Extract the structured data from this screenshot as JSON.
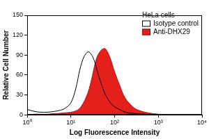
{
  "chart_data": {
    "type": "line",
    "title": "HeLa cells",
    "x_label": "Log Fluorescence Intensity",
    "y_label": "Relative Cell Number",
    "x": [
      1,
      1.5,
      2,
      3,
      4,
      5,
      7,
      10,
      13,
      16,
      20,
      25,
      30,
      35,
      40,
      50,
      60,
      70,
      80,
      100,
      130,
      160,
      200,
      300,
      500,
      1000,
      2000,
      10000
    ],
    "series": [
      {
        "name": "Isotype control",
        "color": "#000000",
        "type": "line",
        "values": [
          8,
          5,
          4,
          4,
          5,
          6,
          9,
          18,
          40,
          68,
          88,
          95,
          90,
          80,
          66,
          46,
          32,
          24,
          18,
          12,
          8,
          5,
          3,
          2,
          1,
          0,
          0,
          0
        ]
      },
      {
        "name": "Anti-DHX29",
        "color": "#e3201b",
        "type": "area",
        "values": [
          0,
          1,
          1,
          1,
          2,
          2,
          3,
          4,
          6,
          10,
          20,
          35,
          55,
          75,
          88,
          98,
          100,
          94,
          85,
          65,
          45,
          30,
          20,
          9,
          4,
          1,
          0,
          0
        ]
      }
    ],
    "log": "x",
    "xlim": [
      1,
      10000
    ],
    "xticks": [
      {
        "value": 1,
        "label": "10⁰"
      },
      {
        "value": 10,
        "label": "10¹"
      },
      {
        "value": 100,
        "label": "10²"
      },
      {
        "value": 1000,
        "label": "10³"
      },
      {
        "value": 10000,
        "label": "10⁴"
      }
    ],
    "ylim": [
      0,
      150
    ],
    "yticks": [
      0,
      30,
      60,
      90,
      120,
      150
    ],
    "grid": false,
    "legend": "top-right"
  }
}
